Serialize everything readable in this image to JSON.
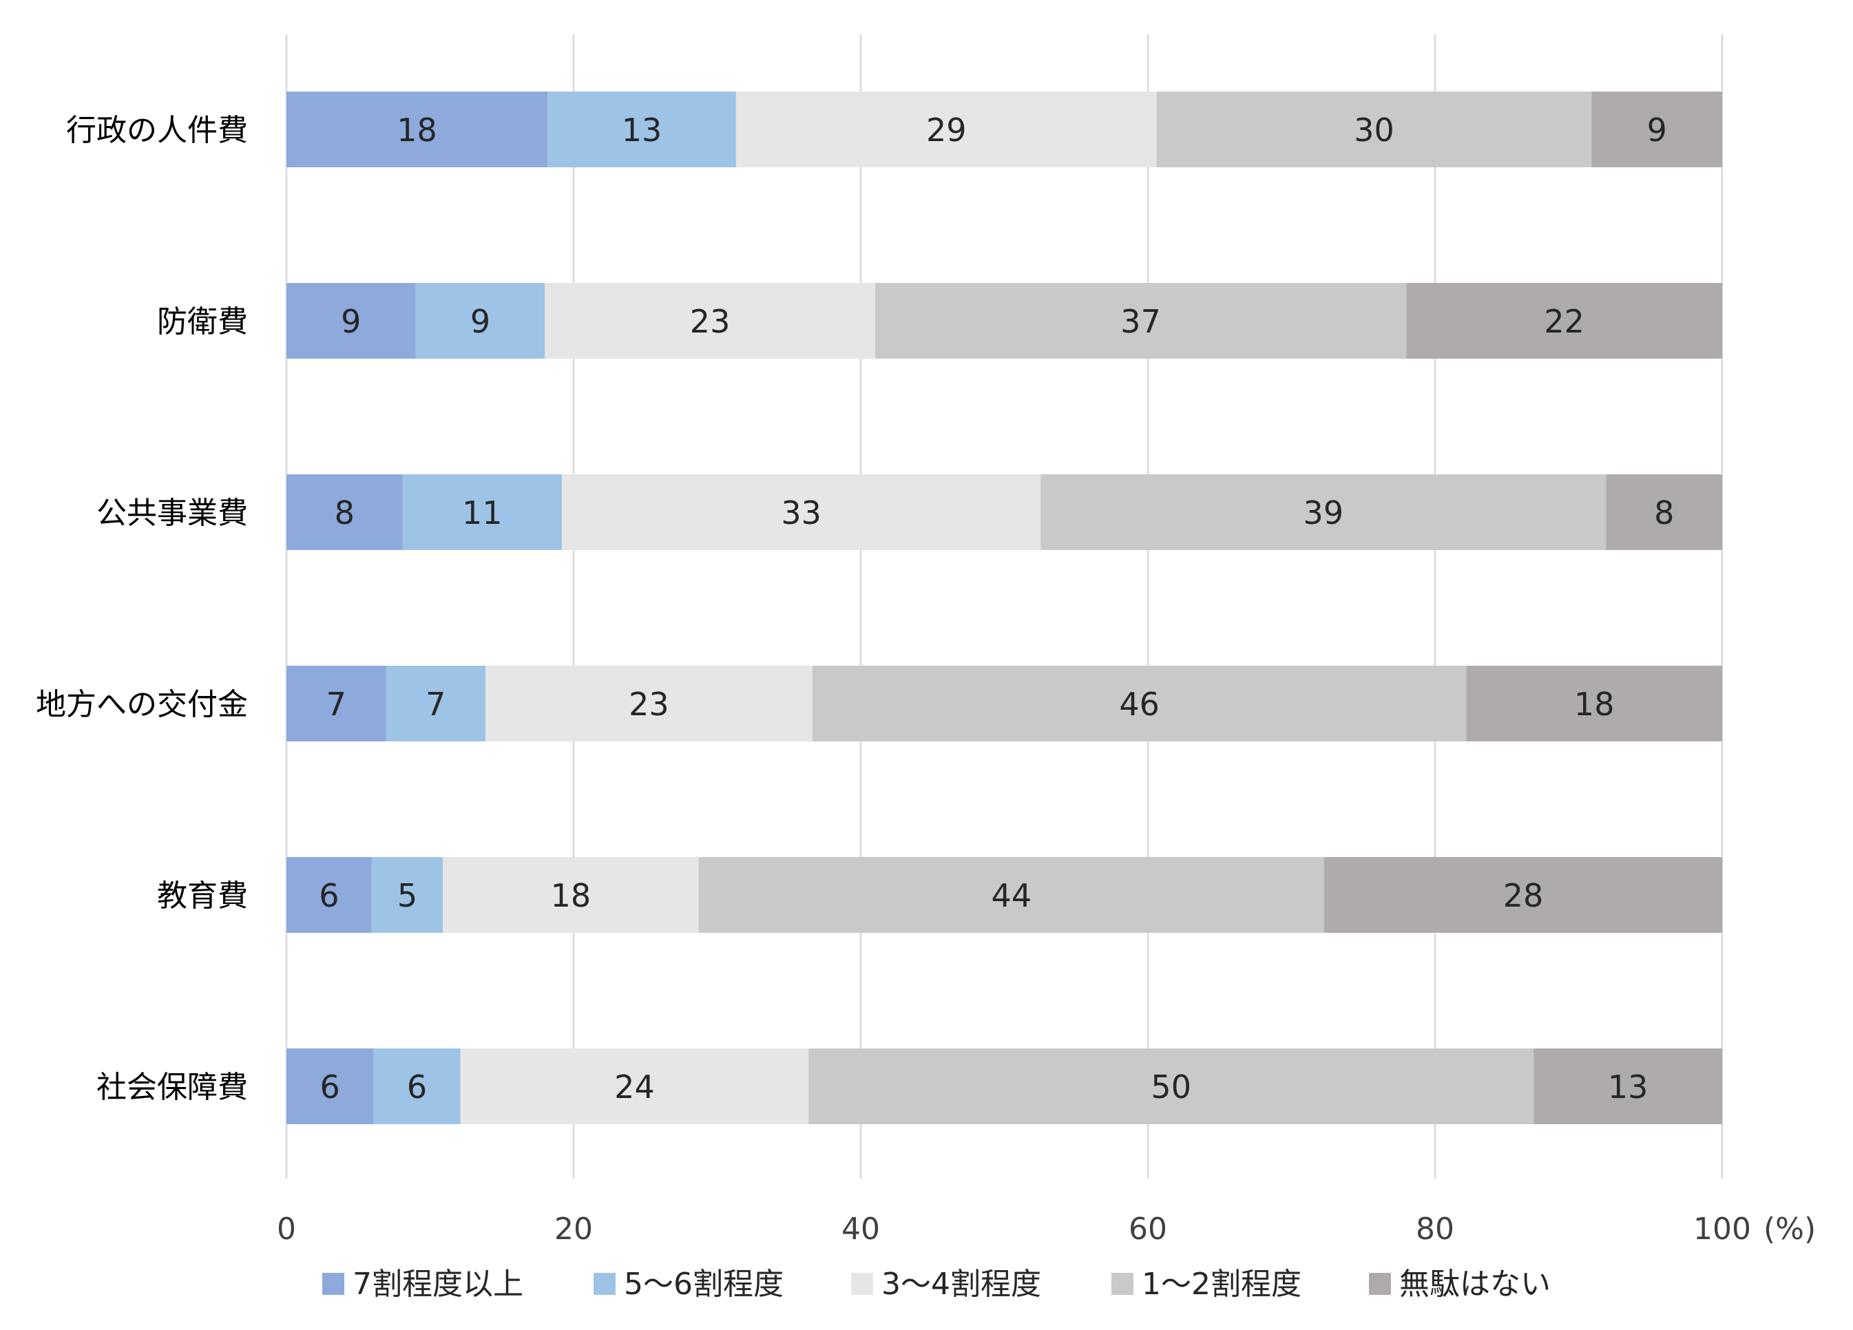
{
  "chart_data": {
    "type": "bar",
    "orientation": "horizontal",
    "stacked": true,
    "title": "",
    "xlabel": "",
    "ylabel": "",
    "x_unit": "(%)",
    "xlim": [
      0,
      100
    ],
    "xticks": [
      "0",
      "20",
      "40",
      "60",
      "80",
      "100"
    ],
    "grid": true,
    "legend_position": "bottom",
    "categories": [
      "行政の人件費",
      "防衛費",
      "公共事業費",
      "地方への交付金",
      "教育費",
      "社会保障費"
    ],
    "series": [
      {
        "name": "7割程度以上",
        "color": "#8EA9DB",
        "values": [
          18,
          9,
          8,
          7,
          6,
          6
        ],
        "value_labels": [
          "18",
          "9",
          "8",
          "7",
          "6",
          "6"
        ]
      },
      {
        "name": "5～6割程度",
        "color": "#9DC3E6",
        "values": [
          13,
          9,
          11,
          7,
          5,
          6
        ],
        "value_labels": [
          "13",
          "9",
          "11",
          "7",
          "5",
          "6"
        ]
      },
      {
        "name": "3～4割程度",
        "color": "#E7E6E6",
        "values": [
          29,
          23,
          33,
          23,
          18,
          24
        ],
        "value_labels": [
          "29",
          "23",
          "33",
          "23",
          "18",
          "24"
        ]
      },
      {
        "name": "1～2割程度",
        "color": "#C9C9C9",
        "values": [
          30,
          37,
          39,
          46,
          44,
          50
        ],
        "value_labels": [
          "30",
          "37",
          "39",
          "46",
          "44",
          "50"
        ]
      },
      {
        "name": "無駄はない",
        "color": "#AFABAB",
        "values": [
          9,
          22,
          8,
          18,
          28,
          13
        ],
        "value_labels": [
          "9",
          "22",
          "8",
          "18",
          "28",
          "13"
        ]
      }
    ]
  }
}
